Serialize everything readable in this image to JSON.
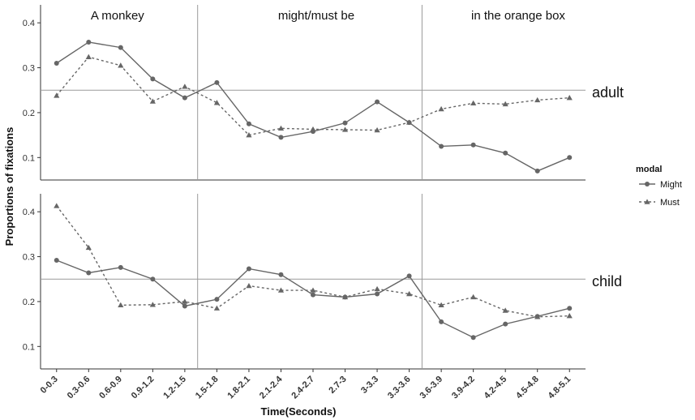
{
  "chart_data": {
    "type": "line",
    "xlabel": "Time(Seconds)",
    "ylabel": "Proportions of fixations",
    "categories": [
      "0-0.3",
      "0.3-0.6",
      "0.6-0.9",
      "0.9-1.2",
      "1.2-1.5",
      "1.5-1.8",
      "1.8-2.1",
      "2.1-2.4",
      "2.4-2.7",
      "2.7-3",
      "3-3.3",
      "3.3-3.6",
      "3.6-3.9",
      "3.9-4.2",
      "4.2-4.5",
      "4.5-4.8",
      "4.8-5.1"
    ],
    "segment_labels": [
      "A monkey",
      "might/must be",
      "in the orange box"
    ],
    "reference_line": 0.25,
    "legend": {
      "title": "modal",
      "entries": [
        "Might",
        "Must"
      ],
      "position": "right"
    },
    "colors": {
      "line": "#666666",
      "grid": "#9a9a9a",
      "axis": "#333333"
    },
    "panels": [
      {
        "label": "adult",
        "ylim": [
          0.05,
          0.44
        ],
        "yticks": [
          "0.1",
          "0.2",
          "0.3",
          "0.4"
        ],
        "series": [
          {
            "name": "Might",
            "style": "solid",
            "marker": "circle",
            "values": [
              0.31,
              0.357,
              0.345,
              0.275,
              0.233,
              0.267,
              0.175,
              0.145,
              0.158,
              0.177,
              0.224,
              0.178,
              0.125,
              0.128,
              0.11,
              0.07,
              0.1
            ]
          },
          {
            "name": "Must",
            "style": "dashed",
            "marker": "triangle",
            "values": [
              0.238,
              0.324,
              0.305,
              0.225,
              0.258,
              0.222,
              0.15,
              0.165,
              0.163,
              0.162,
              0.161,
              0.178,
              0.208,
              0.221,
              0.219,
              0.228,
              0.233
            ]
          }
        ]
      },
      {
        "label": "child",
        "ylim": [
          0.05,
          0.44
        ],
        "yticks": [
          "0.1",
          "0.2",
          "0.3",
          "0.4"
        ],
        "series": [
          {
            "name": "Might",
            "style": "solid",
            "marker": "circle",
            "values": [
              0.292,
              0.264,
              0.276,
              0.25,
              0.19,
              0.205,
              0.273,
              0.26,
              0.215,
              0.21,
              0.217,
              0.257,
              0.155,
              0.12,
              0.15,
              0.167,
              0.185
            ]
          },
          {
            "name": "Must",
            "style": "dashed",
            "marker": "triangle",
            "values": [
              0.413,
              0.32,
              0.192,
              0.193,
              0.2,
              0.185,
              0.235,
              0.225,
              0.225,
              0.21,
              0.228,
              0.217,
              0.192,
              0.21,
              0.18,
              0.166,
              0.168
            ]
          }
        ]
      }
    ]
  }
}
